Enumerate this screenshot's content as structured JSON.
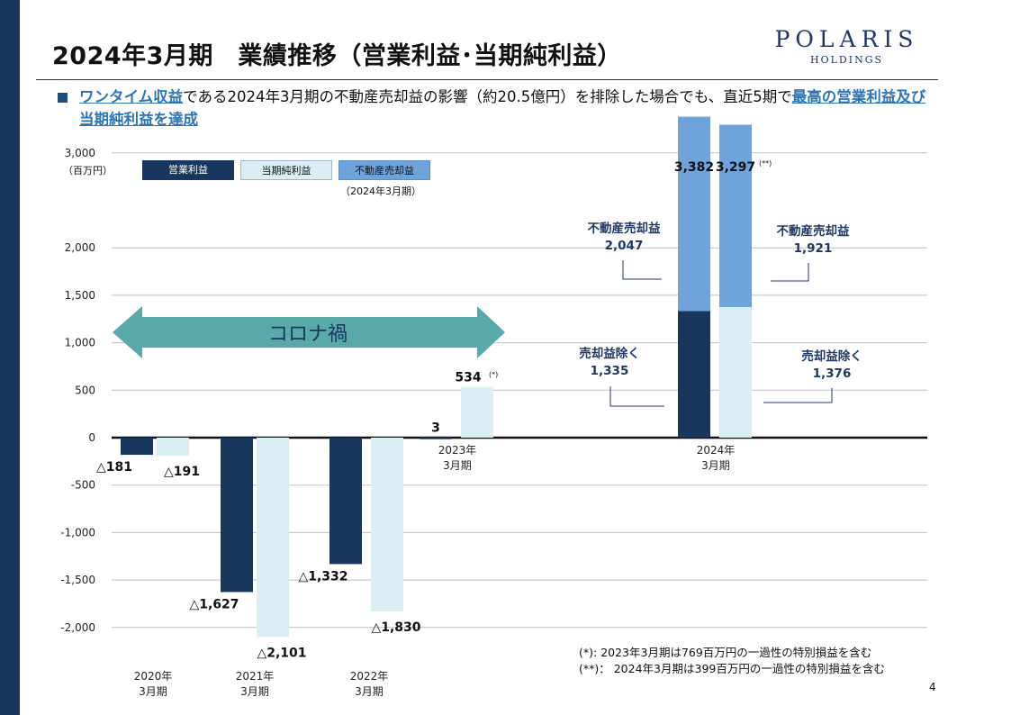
{
  "title": "2024年3月期　業績推移（営業利益･当期純利益）",
  "logo": {
    "main": "POLARIS",
    "sub": "HOLDINGS"
  },
  "headline": {
    "link1": "ワンタイム収益",
    "text1": "である2024年3月期の不動産売却益の影響（約20.5億円）を排除した場合でも、直近5期で",
    "link2": "最高の営業利益及び当期純利益を達成"
  },
  "unit": "（百万円）",
  "legend": {
    "op": "営業利益",
    "net": "当期純利益",
    "re": "不動産売却益",
    "re_note": "（2024年3月期）"
  },
  "colors": {
    "op": "#17375e",
    "net": "#daeef3",
    "re": "#6fa3dc",
    "arrow": "#5aa9a9",
    "border": "#9bb7d4"
  },
  "covid_label": "コロナ禍",
  "chart_data": {
    "type": "bar",
    "stacked_last": true,
    "ylim": [
      -2000,
      3000
    ],
    "yticks": [
      3000,
      2000,
      1500,
      1000,
      500,
      0,
      -500,
      -1000,
      -1500,
      -2000
    ],
    "ytick_labels": [
      "3,000",
      "2,000",
      "1,500",
      "1,000",
      "500",
      "0",
      "-500",
      "-1,000",
      "-1,500",
      "-2,000"
    ],
    "categories": [
      {
        "line1": "2020年",
        "line2": "3月期"
      },
      {
        "line1": "2021年",
        "line2": "3月期"
      },
      {
        "line1": "2022年",
        "line2": "3月期"
      },
      {
        "line1": "2023年",
        "line2": "3月期"
      },
      {
        "line1": "2024年",
        "line2": "3月期"
      }
    ],
    "series": [
      {
        "name": "営業利益",
        "values": [
          -181,
          -1627,
          -1332,
          3,
          1335
        ],
        "labels": [
          "△181",
          "△1,627",
          "△1,332",
          "3",
          ""
        ]
      },
      {
        "name": "当期純利益",
        "values": [
          -191,
          -2101,
          -1830,
          534,
          1376
        ],
        "labels": [
          "△191",
          "△2,101",
          "△1,830",
          "534",
          ""
        ]
      },
      {
        "name": "不動産売却益",
        "values": [
          0,
          0,
          0,
          0,
          2047
        ],
        "values_net": [
          0,
          0,
          0,
          0,
          1921
        ]
      }
    ],
    "markers": {
      "y2023_net": "(*)",
      "y2024_net": "(**)"
    },
    "totals_2024": {
      "op": "3,382",
      "net": "3,297"
    },
    "callouts": {
      "op_re": {
        "line1": "不動産売却益",
        "line2": "2,047"
      },
      "net_re": {
        "line1": "不動産売却益",
        "line2": "1,921"
      },
      "op_ex": {
        "line1": "売却益除く",
        "line2": "1,335"
      },
      "net_ex": {
        "line1": "売却益除く",
        "line2": "1,376"
      }
    }
  },
  "footnotes": [
    "(*): 2023年3月期は769百万円の一過性の特別損益を含む",
    "(**)： 2024年3月期は399百万円の一過性の特別損益を含む"
  ],
  "page_number": "4"
}
